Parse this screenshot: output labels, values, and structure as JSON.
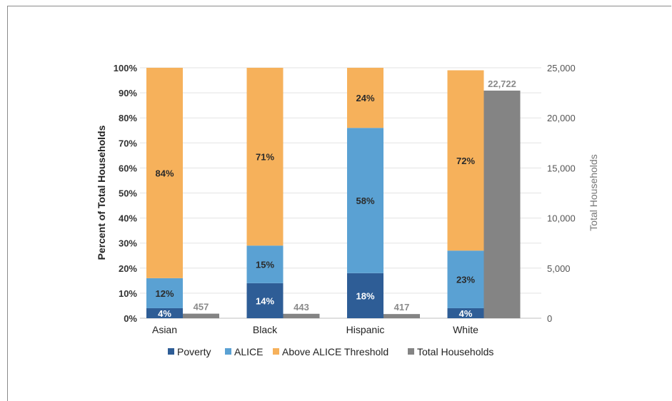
{
  "chart_data": {
    "type": "bar",
    "categories": [
      "Asian",
      "Black",
      "Hispanic",
      "White"
    ],
    "series": [
      {
        "name": "Poverty",
        "axis": "left",
        "stack": "pct",
        "color": "#2e5d96",
        "values": [
          4,
          14,
          18,
          4
        ],
        "labels": [
          "4%",
          "14%",
          "18%",
          "4%"
        ]
      },
      {
        "name": "ALICE",
        "axis": "left",
        "stack": "pct",
        "color": "#5aa1d3",
        "values": [
          12,
          15,
          58,
          23
        ],
        "labels": [
          "12%",
          "15%",
          "58%",
          "23%"
        ]
      },
      {
        "name": "Above ALICE Threshold",
        "axis": "left",
        "stack": "pct",
        "color": "#f6b15b",
        "values": [
          84,
          71,
          24,
          72
        ],
        "labels": [
          "84%",
          "71%",
          "24%",
          "72%"
        ]
      },
      {
        "name": "Total Households",
        "axis": "right",
        "stack": "total",
        "color": "#848484",
        "values": [
          457,
          443,
          417,
          22722
        ],
        "labels": [
          "457",
          "443",
          "417",
          "22,722"
        ]
      }
    ],
    "ylabel": "Percent of Total Households",
    "ylabel_right": "Total Households",
    "ylim": [
      0,
      100
    ],
    "ylim_right": [
      0,
      25000
    ],
    "yticks": [
      "0%",
      "10%",
      "20%",
      "30%",
      "40%",
      "50%",
      "60%",
      "70%",
      "80%",
      "90%",
      "100%"
    ],
    "yticks_right": [
      "0",
      "5,000",
      "10,000",
      "15,000",
      "20,000",
      "25,000"
    ],
    "grid": true,
    "legend": "bottom"
  }
}
